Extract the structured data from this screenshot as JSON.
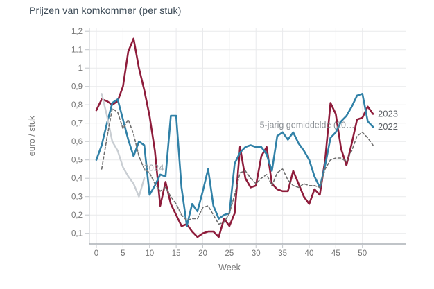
{
  "chart": {
    "title": "Prijzen van komkommer (per stuk)"
  },
  "chart_data": {
    "type": "line",
    "title": "Prijzen van komkommer (per stuk)",
    "xlabel": "Week",
    "ylabel": "euro / stuk",
    "xlim": [
      -1.3,
      58.1
    ],
    "ylim": [
      0.042,
      1.22
    ],
    "grid": true,
    "legend_position": "line-end-labels",
    "x_ticks": [
      0,
      5,
      10,
      15,
      20,
      25,
      30,
      35,
      40,
      45,
      50
    ],
    "y_ticks": [
      0.1,
      0.2,
      0.3,
      0.4,
      0.5,
      0.6,
      0.7,
      0.8,
      0.9,
      1.0,
      1.1,
      1.2
    ],
    "y_tick_labels": [
      "0,1",
      "0,2",
      "0,3",
      "0,4",
      "0,5",
      "0,6",
      "0,7",
      "0,8",
      "0,9",
      "1",
      "1,1",
      "1,2"
    ],
    "series": [
      {
        "name": "2023",
        "color": "#8e1c3b",
        "style": "solid",
        "width": 2.6,
        "start_week": 0,
        "values": [
          0.77,
          0.83,
          0.82,
          0.8,
          0.82,
          0.9,
          1.09,
          1.16,
          1.0,
          0.88,
          0.74,
          0.55,
          0.25,
          0.38,
          0.26,
          0.2,
          0.14,
          0.15,
          0.11,
          0.08,
          0.1,
          0.11,
          0.11,
          0.08,
          0.18,
          0.14,
          0.21,
          0.57,
          0.4,
          0.35,
          0.36,
          0.52,
          0.57,
          0.37,
          0.34,
          0.33,
          0.33,
          0.44,
          0.37,
          0.3,
          0.26,
          0.34,
          0.31,
          0.5,
          0.81,
          0.75,
          0.56,
          0.47,
          0.59,
          0.72,
          0.73,
          0.79,
          0.75
        ]
      },
      {
        "name": "2022",
        "color": "#3181a7",
        "style": "solid",
        "width": 2.6,
        "start_week": 0,
        "values": [
          0.5,
          0.58,
          0.7,
          0.81,
          0.83,
          0.72,
          0.61,
          0.52,
          0.6,
          0.58,
          0.31,
          0.36,
          0.42,
          0.41,
          0.74,
          0.74,
          0.35,
          0.14,
          0.26,
          0.22,
          0.33,
          0.45,
          0.25,
          0.18,
          0.2,
          0.21,
          0.48,
          0.54,
          0.57,
          0.58,
          0.57,
          0.57,
          0.53,
          0.44,
          0.63,
          0.65,
          0.61,
          0.65,
          0.59,
          0.55,
          0.5,
          0.41,
          0.35,
          0.47,
          0.62,
          0.65,
          0.71,
          0.74,
          0.79,
          0.85,
          0.86,
          0.71,
          0.68
        ]
      },
      {
        "name": "2024",
        "color": "#c9ced3",
        "style": "solid",
        "width": 2.4,
        "start_week": 1,
        "values": [
          0.86,
          0.74,
          0.6,
          0.55,
          0.46,
          0.41,
          0.37,
          0.3,
          0.4
        ]
      },
      {
        "name": "5-jarig gemiddelde (20…",
        "color": "#6f6f6f",
        "style": "dashed",
        "width": 1.6,
        "start_week": 1,
        "values": [
          0.45,
          0.62,
          0.78,
          0.76,
          0.67,
          0.72,
          0.64,
          0.52,
          0.45,
          0.43,
          0.37,
          0.33,
          0.35,
          0.3,
          0.26,
          0.2,
          0.17,
          0.18,
          0.18,
          0.24,
          0.25,
          0.2,
          0.15,
          0.16,
          0.21,
          0.31,
          0.43,
          0.44,
          0.4,
          0.37,
          0.4,
          0.42,
          0.36,
          0.43,
          0.45,
          0.39,
          0.36,
          0.35,
          0.37,
          0.36,
          0.36,
          0.35,
          0.45,
          0.5,
          0.51,
          0.51,
          0.49,
          0.55,
          0.63,
          0.65,
          0.62,
          0.58
        ]
      }
    ],
    "annotations": [
      {
        "text": "2024",
        "x_week": 10.8,
        "y_value": 0.44,
        "color": "#9aa0a6",
        "size": 13,
        "anchor": "middle"
      },
      {
        "text": "5-jarig gemiddelde (20…",
        "x_week": 30.7,
        "y_value": 0.675,
        "color": "#8a8f94",
        "size": 12.5,
        "anchor": "start"
      }
    ],
    "end_labels": [
      {
        "text": "2023",
        "series_index": 0
      },
      {
        "text": "2022",
        "series_index": 1
      }
    ],
    "colors": {
      "grid": "#e9eaec",
      "axis_left": "#c3c7cb",
      "axis_bottom": "#9aa0a6",
      "tick": "#c3c7cb",
      "tick_text": "#757575",
      "axis_title": "#757575",
      "title_text": "#3c4a56",
      "end_label_text": "#5f6368",
      "background": "#ffffff"
    }
  }
}
